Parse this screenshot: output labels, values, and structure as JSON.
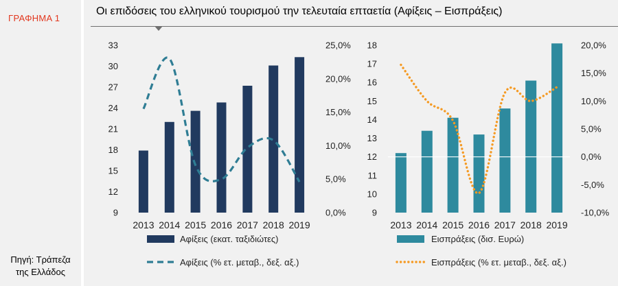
{
  "figure_label": "ΓΡΑΦΗΜΑ 1",
  "source_lines": [
    "Πηγή: Τράπεζα",
    "της Ελλάδος"
  ],
  "title": "Οι επιδόσεις του ελληνικού τουρισμού την τελευταία επταετία (Αφίξεις – Εισπράξεις)",
  "colors": {
    "arrivals_bar": "#213a5f",
    "arrivals_line": "#2f7d94",
    "receipts_bar": "#2e8a9e",
    "receipts_line": "#f59a23",
    "panel_bg": "#f1f1f1",
    "title_rule": "#6f6f6f"
  },
  "chart_data": [
    {
      "type": "bar",
      "name": "arrivals",
      "categories": [
        "2013",
        "2014",
        "2015",
        "2016",
        "2017",
        "2018",
        "2019"
      ],
      "series": [
        {
          "name": "Αφίξεις (εκατ. ταξιδιώτες)",
          "kind": "bar",
          "axis": "left",
          "values": [
            17.9,
            22.0,
            23.6,
            24.8,
            27.2,
            30.1,
            31.3
          ]
        },
        {
          "name": "Αφίξεις (% ετ. μεταβ., δεξ. αξ.)",
          "kind": "line",
          "style": "dashed",
          "axis": "right",
          "values": [
            15.5,
            23.0,
            7.1,
            5.0,
            9.7,
            10.8,
            4.6
          ]
        }
      ],
      "left_axis": {
        "min": 9,
        "max": 33,
        "ticks": [
          "9",
          "12",
          "15",
          "18",
          "21",
          "24",
          "27",
          "30",
          "33"
        ]
      },
      "right_axis": {
        "min": 0,
        "max": 25,
        "ticks": [
          "0,0%",
          "5,0%",
          "10,0%",
          "15,0%",
          "20,0%",
          "25,0%"
        ]
      },
      "grid": false,
      "legend_position": "bottom"
    },
    {
      "type": "bar",
      "name": "receipts",
      "categories": [
        "2013",
        "2014",
        "2015",
        "2016",
        "2017",
        "2018",
        "2019"
      ],
      "series": [
        {
          "name": "Εισπράξεις (δισ. Ευρώ)",
          "kind": "bar",
          "axis": "left",
          "values": [
            12.2,
            13.4,
            14.1,
            13.2,
            14.6,
            16.1,
            18.1
          ]
        },
        {
          "name": "Εισπράξεις (% ετ. μεταβ., δεξ. αξ.)",
          "kind": "line",
          "style": "dotted",
          "axis": "right",
          "values": [
            16.5,
            10.0,
            6.5,
            -6.5,
            11.5,
            10.0,
            12.5
          ]
        }
      ],
      "left_axis": {
        "min": 9,
        "max": 18,
        "ticks": [
          "9",
          "10",
          "11",
          "12",
          "13",
          "14",
          "15",
          "16",
          "17",
          "18"
        ]
      },
      "right_axis": {
        "min": -10,
        "max": 20,
        "ticks": [
          "-10,0%",
          "-5,0%",
          "0,0%",
          "5,0%",
          "10,0%",
          "15,0%",
          "20,0%"
        ]
      },
      "zero_line": true,
      "grid": false,
      "legend_position": "bottom"
    }
  ]
}
